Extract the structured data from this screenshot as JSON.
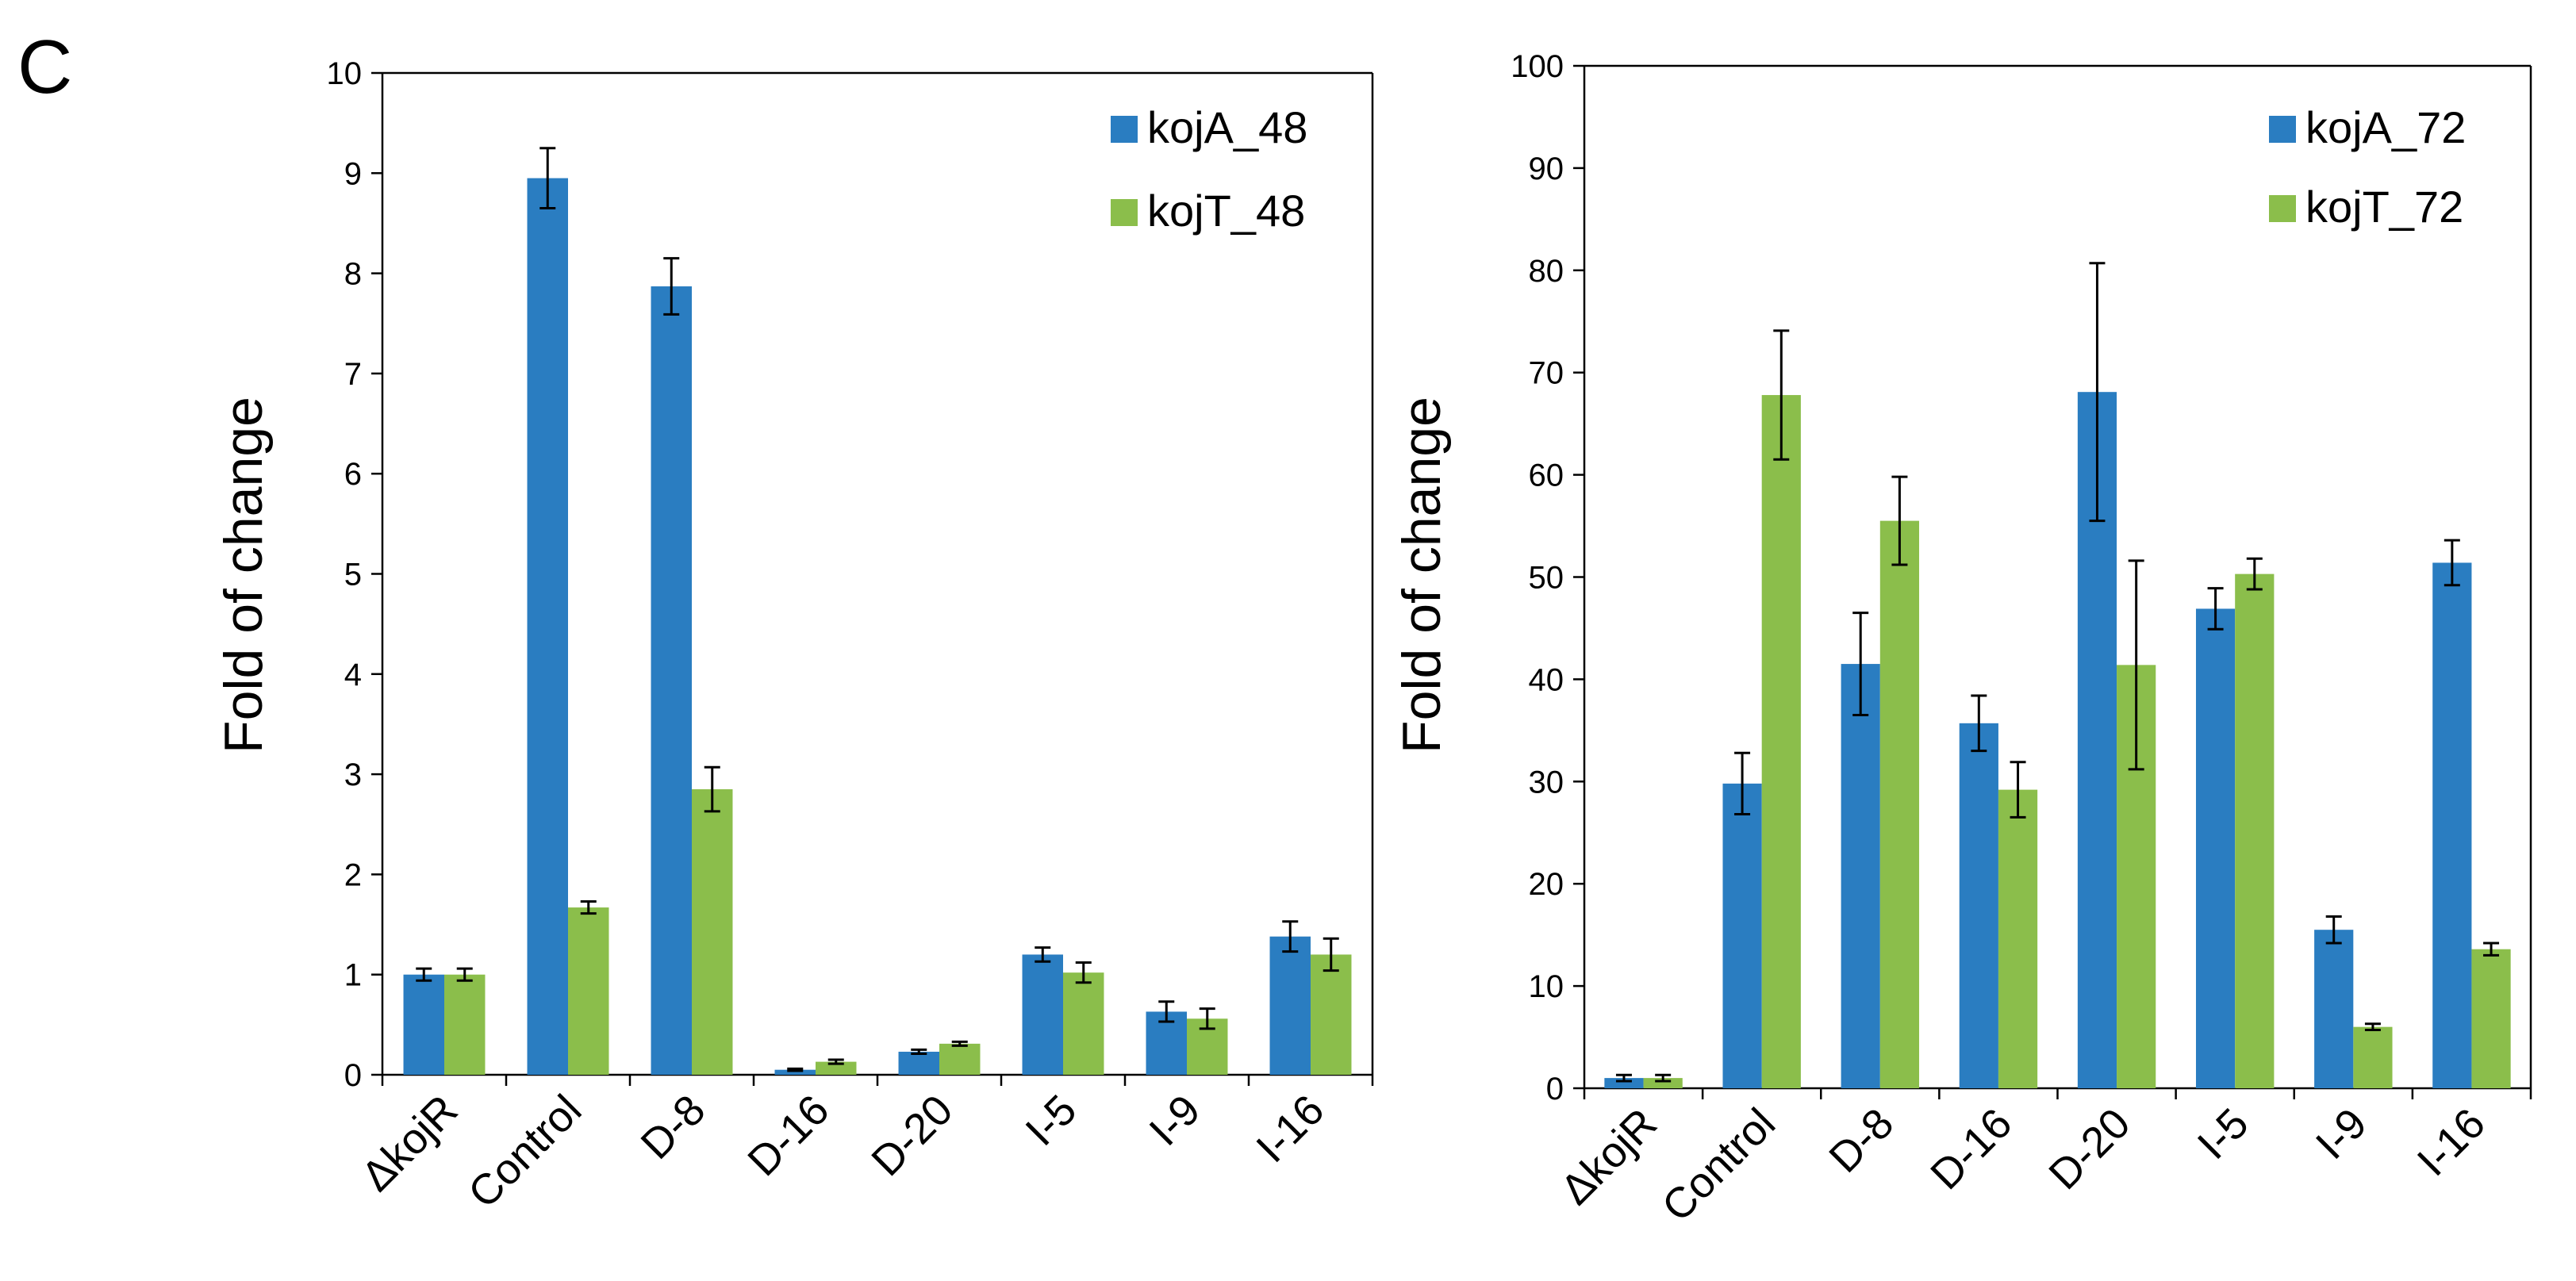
{
  "panel_label": "C",
  "colors": {
    "kojA": "#2A7DC1",
    "kojT": "#8BBE4B",
    "axis": "#000000"
  },
  "chart_data": [
    {
      "type": "bar",
      "title": "",
      "xlabel": "",
      "ylabel": "Fold of change",
      "ylim": [
        0,
        10
      ],
      "yticks": [
        0,
        1,
        2,
        3,
        4,
        5,
        6,
        7,
        8,
        9,
        10
      ],
      "categories": [
        "ΔkojR",
        "Control",
        "D-8",
        "D-16",
        "D-20",
        "I-5",
        "I-9",
        "I-16"
      ],
      "series": [
        {
          "name": "kojA_48",
          "values": [
            1.0,
            8.95,
            7.87,
            0.05,
            0.23,
            1.2,
            0.63,
            1.38
          ],
          "errors": [
            0.06,
            0.3,
            0.28,
            0.01,
            0.02,
            0.07,
            0.1,
            0.15
          ]
        },
        {
          "name": "kojT_48",
          "values": [
            1.0,
            1.67,
            2.85,
            0.13,
            0.31,
            1.02,
            0.56,
            1.2
          ],
          "errors": [
            0.06,
            0.06,
            0.22,
            0.02,
            0.02,
            0.1,
            0.1,
            0.16
          ]
        }
      ],
      "legend_position": "top-right"
    },
    {
      "type": "bar",
      "title": "",
      "xlabel": "",
      "ylabel": "Fold of change",
      "ylim": [
        0,
        100
      ],
      "yticks": [
        0,
        10,
        20,
        30,
        40,
        50,
        60,
        70,
        80,
        90,
        100
      ],
      "categories": [
        "ΔkojR",
        "Control",
        "D-8",
        "D-16",
        "D-20",
        "I-5",
        "I-9",
        "I-16"
      ],
      "series": [
        {
          "name": "kojA_72",
          "values": [
            1.0,
            29.8,
            41.5,
            35.7,
            68.1,
            46.9,
            15.5,
            51.4
          ],
          "errors": [
            0.3,
            3.0,
            5.0,
            2.7,
            12.6,
            2.0,
            1.3,
            2.2
          ]
        },
        {
          "name": "kojT_72",
          "values": [
            1.0,
            67.8,
            55.5,
            29.2,
            41.4,
            50.3,
            6.0,
            13.6
          ],
          "errors": [
            0.3,
            6.3,
            4.3,
            2.7,
            10.2,
            1.5,
            0.3,
            0.6
          ]
        }
      ],
      "legend_position": "top-right"
    }
  ]
}
